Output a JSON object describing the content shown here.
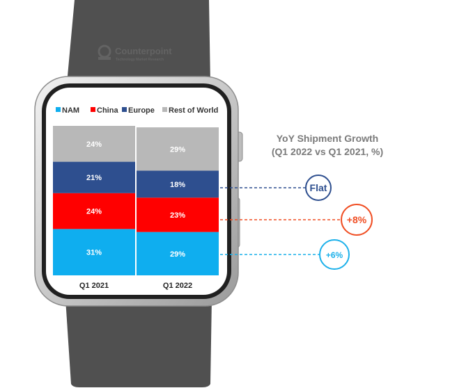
{
  "watermark": {
    "brand": "Counterpoint",
    "tagline": "Technology Market Research"
  },
  "colors": {
    "NAM": "#0FAEEF",
    "China": "#FF0000",
    "Europe": "#2E4F8F",
    "Rest of World": "#B8B8B8",
    "flat": "#2E4F8F",
    "china_growth": "#F04E23",
    "nam_growth": "#1AB0EA"
  },
  "chart_data": {
    "type": "bar",
    "stacked": true,
    "categories": [
      "Q1 2021",
      "Q1 2022"
    ],
    "series": [
      {
        "name": "NAM",
        "values": [
          31,
          29
        ],
        "labels": [
          "31%",
          "29%"
        ]
      },
      {
        "name": "China",
        "values": [
          24,
          23
        ],
        "labels": [
          "24%",
          "23%"
        ]
      },
      {
        "name": "Europe",
        "values": [
          21,
          18
        ],
        "labels": [
          "21%",
          "18%"
        ]
      },
      {
        "name": "Rest of World",
        "values": [
          24,
          29
        ],
        "labels": [
          "24%",
          "29%"
        ]
      }
    ],
    "ylim": [
      0,
      100
    ],
    "legend": [
      "NAM",
      "China",
      "Europe",
      "Rest of World"
    ],
    "legend_position": "top",
    "annotation": {
      "title_line1": "YoY Shipment Growth",
      "title_line2": "(Q1 2022 vs Q1 2021, %)",
      "growth": [
        {
          "series": "Europe",
          "label": "Flat"
        },
        {
          "series": "China",
          "label": "+8%"
        },
        {
          "series": "NAM",
          "label": "+6%"
        }
      ]
    }
  }
}
